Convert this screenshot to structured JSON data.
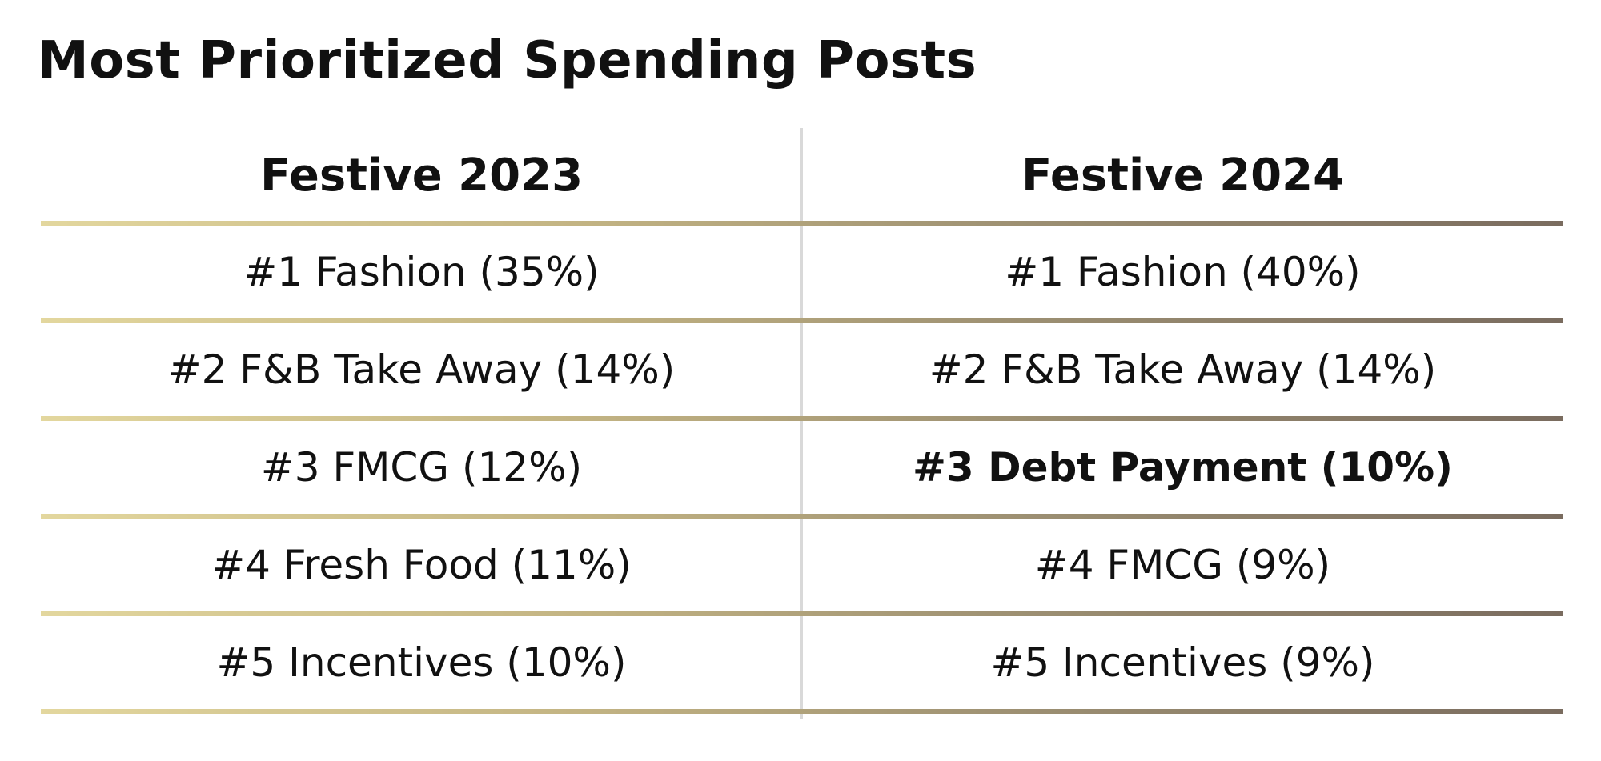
{
  "title": "Most Prioritized Spending Posts",
  "colors": {
    "rule_gradient_start": "#e3d79e",
    "rule_gradient_end": "#7a6c5f",
    "divider": "#d9d9d9"
  },
  "table": {
    "columns": [
      "Festive 2023",
      "Festive 2024"
    ],
    "rows": [
      {
        "festive_2023": "#1 Fashion (35%)",
        "festive_2024": "#1 Fashion (40%)",
        "emphasis_2024": false
      },
      {
        "festive_2023": "#2 F&B Take Away (14%)",
        "festive_2024": "#2 F&B Take Away (14%)",
        "emphasis_2024": false
      },
      {
        "festive_2023": "#3 FMCG (12%)",
        "festive_2024": "#3 Debt Payment (10%)",
        "emphasis_2024": true
      },
      {
        "festive_2023": "#4 Fresh Food (11%)",
        "festive_2024": "#4 FMCG (9%)",
        "emphasis_2024": false
      },
      {
        "festive_2023": "#5 Incentives (10%)",
        "festive_2024": "#5 Incentives (9%)",
        "emphasis_2024": false
      }
    ]
  }
}
